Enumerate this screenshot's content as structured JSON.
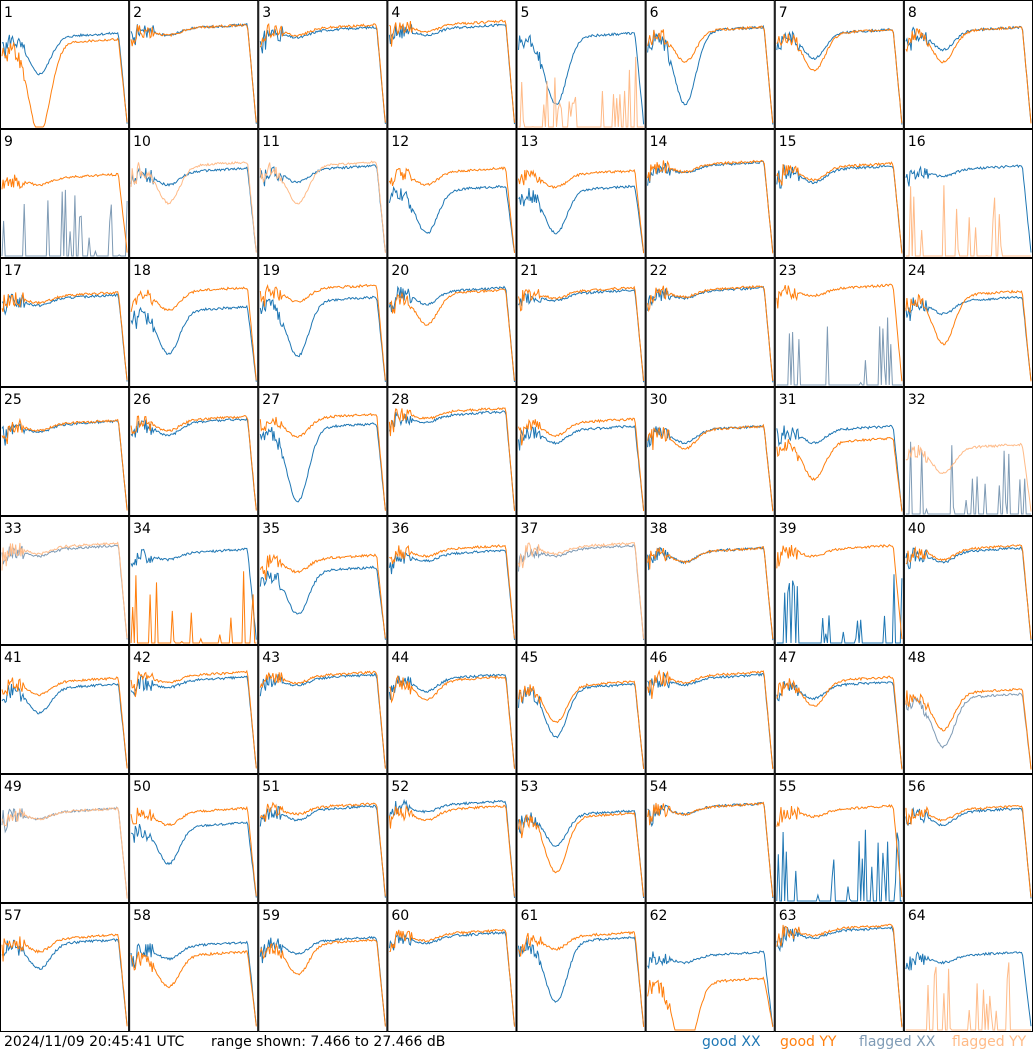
{
  "timestamp": "2024/11/09 20:45:41 UTC",
  "range_text": "range shown: 7.466 to 27.466 dB",
  "legend": {
    "good_xx": "good XX",
    "good_yy": "good YY",
    "flagged_xx": "flagged XX",
    "flagged_yy": "flagged YY"
  },
  "colors": {
    "good_xx": "#1f77b4",
    "good_yy": "#ff7f0e",
    "flagged_xx": "#7f9bb5",
    "flagged_yy": "#ffbb88"
  },
  "chart_data": {
    "type": "line",
    "grid": {
      "rows": 8,
      "cols": 8
    },
    "ylim": [
      7.466,
      27.466
    ],
    "yunit": "dB",
    "panels": [
      {
        "label": "1",
        "xx": "good",
        "yy": "good",
        "xx_dip": 0.3,
        "yy_dip": 0.75,
        "xx_level": 0.75,
        "yy_level": 0.7
      },
      {
        "label": "2",
        "xx": "good",
        "yy": "good",
        "xx_dip": 0.05,
        "yy_dip": 0.05,
        "xx_level": 0.82,
        "yy_level": 0.82
      },
      {
        "label": "3",
        "xx": "good",
        "yy": "good",
        "xx_dip": 0.05,
        "yy_dip": 0.05,
        "xx_level": 0.8,
        "yy_level": 0.82
      },
      {
        "label": "4",
        "xx": "good",
        "yy": "good",
        "xx_dip": 0.05,
        "yy_dip": 0.05,
        "xx_level": 0.82,
        "yy_level": 0.85
      },
      {
        "label": "5",
        "xx": "good",
        "yy": "dead",
        "xx_dip": 0.55,
        "yy_dip": 0.0,
        "xx_level": 0.75,
        "yy_level": 0.0
      },
      {
        "label": "6",
        "xx": "good",
        "yy": "good",
        "xx_dip": 0.6,
        "yy_dip": 0.25,
        "xx_level": 0.8,
        "yy_level": 0.8
      },
      {
        "label": "7",
        "xx": "good",
        "yy": "good",
        "xx_dip": 0.2,
        "yy_dip": 0.3,
        "xx_level": 0.78,
        "yy_level": 0.78
      },
      {
        "label": "8",
        "xx": "good",
        "yy": "good",
        "xx_dip": 0.15,
        "yy_dip": 0.25,
        "xx_level": 0.8,
        "yy_level": 0.8
      },
      {
        "label": "9",
        "xx": "flagged",
        "yy": "good",
        "xx_dip": 0.0,
        "yy_dip": 0.05,
        "xx_level": 0.0,
        "yy_level": 0.65
      },
      {
        "label": "10",
        "xx": "good",
        "yy": "flagged",
        "xx_dip": 0.1,
        "yy_dip": 0.3,
        "xx_level": 0.7,
        "yy_level": 0.75
      },
      {
        "label": "11",
        "xx": "good",
        "yy": "flagged",
        "xx_dip": 0.1,
        "yy_dip": 0.3,
        "xx_level": 0.72,
        "yy_level": 0.75
      },
      {
        "label": "12",
        "xx": "good",
        "yy": "good",
        "xx_dip": 0.35,
        "yy_dip": 0.1,
        "xx_level": 0.55,
        "yy_level": 0.7
      },
      {
        "label": "13",
        "xx": "good",
        "yy": "good",
        "xx_dip": 0.35,
        "yy_dip": 0.1,
        "xx_level": 0.55,
        "yy_level": 0.68
      },
      {
        "label": "14",
        "xx": "good",
        "yy": "good",
        "xx_dip": 0.05,
        "yy_dip": 0.05,
        "xx_level": 0.75,
        "yy_level": 0.76
      },
      {
        "label": "15",
        "xx": "good",
        "yy": "good",
        "xx_dip": 0.1,
        "yy_dip": 0.1,
        "xx_level": 0.72,
        "yy_level": 0.74
      },
      {
        "label": "16",
        "xx": "good",
        "yy": "dead",
        "xx_dip": 0.05,
        "yy_dip": 0.0,
        "xx_level": 0.72,
        "yy_level": 0.0
      },
      {
        "label": "17",
        "xx": "good",
        "yy": "good",
        "xx_dip": 0.05,
        "yy_dip": 0.05,
        "xx_level": 0.72,
        "yy_level": 0.74
      },
      {
        "label": "18",
        "xx": "good",
        "yy": "good",
        "xx_dip": 0.35,
        "yy_dip": 0.15,
        "xx_level": 0.62,
        "yy_level": 0.78
      },
      {
        "label": "19",
        "xx": "good",
        "yy": "good",
        "xx_dip": 0.45,
        "yy_dip": 0.1,
        "xx_level": 0.7,
        "yy_level": 0.8
      },
      {
        "label": "20",
        "xx": "good",
        "yy": "good",
        "xx_dip": 0.1,
        "yy_dip": 0.25,
        "xx_level": 0.78,
        "yy_level": 0.76
      },
      {
        "label": "21",
        "xx": "good",
        "yy": "good",
        "xx_dip": 0.05,
        "yy_dip": 0.05,
        "xx_level": 0.76,
        "yy_level": 0.78
      },
      {
        "label": "22",
        "xx": "good",
        "yy": "good",
        "xx_dip": 0.05,
        "yy_dip": 0.05,
        "xx_level": 0.78,
        "yy_level": 0.79
      },
      {
        "label": "23",
        "xx": "flagged",
        "yy": "good",
        "xx_dip": 0.0,
        "yy_dip": 0.05,
        "xx_level": 0.0,
        "yy_level": 0.8
      },
      {
        "label": "24",
        "xx": "good",
        "yy": "good",
        "xx_dip": 0.1,
        "yy_dip": 0.4,
        "xx_level": 0.7,
        "yy_level": 0.75
      },
      {
        "label": "25",
        "xx": "good",
        "yy": "good",
        "xx_dip": 0.05,
        "yy_dip": 0.05,
        "xx_level": 0.74,
        "yy_level": 0.75
      },
      {
        "label": "26",
        "xx": "good",
        "yy": "good",
        "xx_dip": 0.1,
        "yy_dip": 0.08,
        "xx_level": 0.76,
        "yy_level": 0.78
      },
      {
        "label": "27",
        "xx": "good",
        "yy": "good",
        "xx_dip": 0.6,
        "yy_dip": 0.15,
        "xx_level": 0.72,
        "yy_level": 0.8
      },
      {
        "label": "28",
        "xx": "good",
        "yy": "good",
        "xx_dip": 0.05,
        "yy_dip": 0.05,
        "xx_level": 0.82,
        "yy_level": 0.85
      },
      {
        "label": "29",
        "xx": "good",
        "yy": "good",
        "xx_dip": 0.1,
        "yy_dip": 0.1,
        "xx_level": 0.7,
        "yy_level": 0.76
      },
      {
        "label": "30",
        "xx": "good",
        "yy": "good",
        "xx_dip": 0.1,
        "yy_dip": 0.15,
        "xx_level": 0.7,
        "yy_level": 0.7
      },
      {
        "label": "31",
        "xx": "good",
        "yy": "good",
        "xx_dip": 0.1,
        "yy_dip": 0.3,
        "xx_level": 0.7,
        "yy_level": 0.6
      },
      {
        "label": "32",
        "xx": "dead",
        "yy": "flagged",
        "xx_dip": 0.0,
        "yy_dip": 0.2,
        "xx_level": 0.0,
        "yy_level": 0.55
      },
      {
        "label": "33",
        "xx": "flagged",
        "yy": "flagged",
        "xx_dip": 0.05,
        "yy_dip": 0.05,
        "xx_level": 0.78,
        "yy_level": 0.8
      },
      {
        "label": "34",
        "xx": "good",
        "yy": "good",
        "xx_dip": 0.05,
        "yy_dip": 0.0,
        "xx_level": 0.75,
        "yy_level": 0.0
      },
      {
        "label": "35",
        "xx": "good",
        "yy": "good",
        "xx_dip": 0.35,
        "yy_dip": 0.1,
        "xx_level": 0.6,
        "yy_level": 0.7
      },
      {
        "label": "36",
        "xx": "good",
        "yy": "good",
        "xx_dip": 0.05,
        "yy_dip": 0.05,
        "xx_level": 0.74,
        "yy_level": 0.78
      },
      {
        "label": "37",
        "xx": "flagged",
        "yy": "flagged",
        "xx_dip": 0.05,
        "yy_dip": 0.05,
        "xx_level": 0.78,
        "yy_level": 0.8
      },
      {
        "label": "38",
        "xx": "good",
        "yy": "good",
        "xx_dip": 0.08,
        "yy_dip": 0.08,
        "xx_level": 0.76,
        "yy_level": 0.76
      },
      {
        "label": "39",
        "xx": "good",
        "yy": "good",
        "xx_dip": 0.0,
        "yy_dip": 0.05,
        "xx_level": 0.0,
        "yy_level": 0.78
      },
      {
        "label": "40",
        "xx": "good",
        "yy": "good",
        "xx_dip": 0.08,
        "yy_dip": 0.08,
        "xx_level": 0.76,
        "yy_level": 0.78
      },
      {
        "label": "41",
        "xx": "good",
        "yy": "good",
        "xx_dip": 0.2,
        "yy_dip": 0.1,
        "xx_level": 0.7,
        "yy_level": 0.75
      },
      {
        "label": "42",
        "xx": "good",
        "yy": "good",
        "xx_dip": 0.05,
        "yy_dip": 0.05,
        "xx_level": 0.76,
        "yy_level": 0.8
      },
      {
        "label": "43",
        "xx": "good",
        "yy": "good",
        "xx_dip": 0.05,
        "yy_dip": 0.05,
        "xx_level": 0.78,
        "yy_level": 0.8
      },
      {
        "label": "44",
        "xx": "good",
        "yy": "good",
        "xx_dip": 0.1,
        "yy_dip": 0.15,
        "xx_level": 0.78,
        "yy_level": 0.76
      },
      {
        "label": "45",
        "xx": "good",
        "yy": "good",
        "xx_dip": 0.4,
        "yy_dip": 0.3,
        "xx_level": 0.7,
        "yy_level": 0.72
      },
      {
        "label": "46",
        "xx": "good",
        "yy": "good",
        "xx_dip": 0.05,
        "yy_dip": 0.05,
        "xx_level": 0.78,
        "yy_level": 0.8
      },
      {
        "label": "47",
        "xx": "good",
        "yy": "good",
        "xx_dip": 0.1,
        "yy_dip": 0.2,
        "xx_level": 0.72,
        "yy_level": 0.76
      },
      {
        "label": "48",
        "xx": "flagged",
        "yy": "good",
        "xx_dip": 0.4,
        "yy_dip": 0.3,
        "xx_level": 0.62,
        "yy_level": 0.66
      },
      {
        "label": "49",
        "xx": "flagged",
        "yy": "flagged",
        "xx_dip": 0.05,
        "yy_dip": 0.05,
        "xx_level": 0.74,
        "yy_level": 0.74
      },
      {
        "label": "50",
        "xx": "good",
        "yy": "good",
        "xx_dip": 0.3,
        "yy_dip": 0.1,
        "xx_level": 0.62,
        "yy_level": 0.74
      },
      {
        "label": "51",
        "xx": "good",
        "yy": "good",
        "xx_dip": 0.08,
        "yy_dip": 0.05,
        "xx_level": 0.76,
        "yy_level": 0.78
      },
      {
        "label": "52",
        "xx": "good",
        "yy": "good",
        "xx_dip": 0.05,
        "yy_dip": 0.08,
        "xx_level": 0.8,
        "yy_level": 0.76
      },
      {
        "label": "53",
        "xx": "good",
        "yy": "good",
        "xx_dip": 0.25,
        "yy_dip": 0.45,
        "xx_level": 0.72,
        "yy_level": 0.7
      },
      {
        "label": "54",
        "xx": "good",
        "yy": "good",
        "xx_dip": 0.05,
        "yy_dip": 0.05,
        "xx_level": 0.78,
        "yy_level": 0.78
      },
      {
        "label": "55",
        "xx": "good",
        "yy": "good",
        "xx_dip": 0.0,
        "yy_dip": 0.05,
        "xx_level": 0.0,
        "yy_level": 0.76
      },
      {
        "label": "56",
        "xx": "good",
        "yy": "good",
        "xx_dip": 0.1,
        "yy_dip": 0.08,
        "xx_level": 0.74,
        "yy_level": 0.76
      },
      {
        "label": "57",
        "xx": "good",
        "yy": "good",
        "xx_dip": 0.2,
        "yy_dip": 0.1,
        "xx_level": 0.72,
        "yy_level": 0.76
      },
      {
        "label": "58",
        "xx": "good",
        "yy": "good",
        "xx_dip": 0.1,
        "yy_dip": 0.25,
        "xx_level": 0.7,
        "yy_level": 0.62
      },
      {
        "label": "59",
        "xx": "good",
        "yy": "good",
        "xx_dip": 0.1,
        "yy_dip": 0.25,
        "xx_level": 0.74,
        "yy_level": 0.72
      },
      {
        "label": "60",
        "xx": "good",
        "yy": "good",
        "xx_dip": 0.05,
        "yy_dip": 0.05,
        "xx_level": 0.78,
        "yy_level": 0.8
      },
      {
        "label": "61",
        "xx": "good",
        "yy": "good",
        "xx_dip": 0.5,
        "yy_dip": 0.1,
        "xx_level": 0.74,
        "yy_level": 0.78
      },
      {
        "label": "62",
        "xx": "good",
        "yy": "good",
        "xx_dip": 0.05,
        "yy_dip": 0.6,
        "xx_level": 0.62,
        "yy_level": 0.4
      },
      {
        "label": "63",
        "xx": "good",
        "yy": "good",
        "xx_dip": 0.05,
        "yy_dip": 0.05,
        "xx_level": 0.82,
        "yy_level": 0.84
      },
      {
        "label": "64",
        "xx": "good",
        "yy": "dead",
        "xx_dip": 0.05,
        "yy_dip": 0.0,
        "xx_level": 0.62,
        "yy_level": 0.0
      }
    ]
  }
}
